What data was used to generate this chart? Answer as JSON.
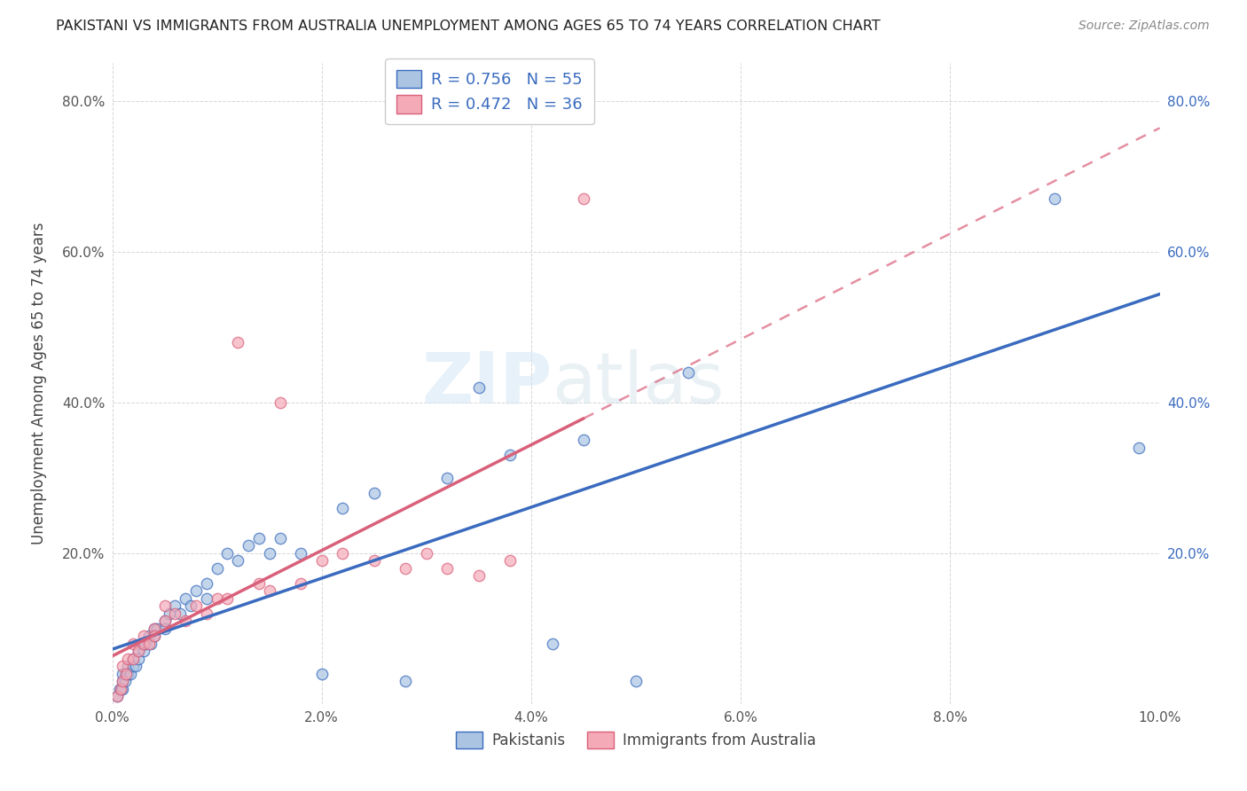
{
  "title": "PAKISTANI VS IMMIGRANTS FROM AUSTRALIA UNEMPLOYMENT AMONG AGES 65 TO 74 YEARS CORRELATION CHART",
  "source": "Source: ZipAtlas.com",
  "ylabel": "Unemployment Among Ages 65 to 74 years",
  "xlim": [
    0.0,
    0.1
  ],
  "ylim": [
    0.0,
    0.85
  ],
  "xticks": [
    0.0,
    0.02,
    0.04,
    0.06,
    0.08,
    0.1
  ],
  "yticks": [
    0.0,
    0.2,
    0.4,
    0.6,
    0.8
  ],
  "xticklabels": [
    "0.0%",
    "2.0%",
    "4.0%",
    "6.0%",
    "8.0%",
    "10.0%"
  ],
  "yticklabels_left": [
    "",
    "20.0%",
    "40.0%",
    "60.0%",
    "80.0%"
  ],
  "yticklabels_right": [
    "",
    "20.0%",
    "40.0%",
    "60.0%",
    "80.0%"
  ],
  "color_pakistani": "#aac4e2",
  "color_australia": "#f5aab8",
  "color_line_pakistani": "#3a6bbf",
  "color_line_australia": "#d9607a",
  "legend_r1": "R = 0.756",
  "legend_n1": "N = 55",
  "legend_r2": "R = 0.472",
  "legend_n2": "N = 36",
  "pakistani_x": [
    0.0005,
    0.0007,
    0.0009,
    0.001,
    0.001,
    0.001,
    0.0012,
    0.0013,
    0.0015,
    0.0015,
    0.0017,
    0.002,
    0.002,
    0.0022,
    0.0025,
    0.0025,
    0.003,
    0.003,
    0.0032,
    0.0035,
    0.0037,
    0.004,
    0.004,
    0.0043,
    0.005,
    0.005,
    0.0055,
    0.006,
    0.0065,
    0.007,
    0.0075,
    0.008,
    0.009,
    0.009,
    0.01,
    0.011,
    0.012,
    0.013,
    0.014,
    0.015,
    0.016,
    0.018,
    0.02,
    0.022,
    0.025,
    0.028,
    0.032,
    0.035,
    0.038,
    0.042,
    0.045,
    0.05,
    0.055,
    0.09,
    0.098
  ],
  "pakistani_y": [
    0.01,
    0.02,
    0.02,
    0.03,
    0.02,
    0.04,
    0.03,
    0.04,
    0.04,
    0.05,
    0.04,
    0.05,
    0.06,
    0.05,
    0.07,
    0.06,
    0.07,
    0.08,
    0.08,
    0.09,
    0.08,
    0.1,
    0.09,
    0.1,
    0.11,
    0.1,
    0.12,
    0.13,
    0.12,
    0.14,
    0.13,
    0.15,
    0.16,
    0.14,
    0.18,
    0.2,
    0.19,
    0.21,
    0.22,
    0.2,
    0.22,
    0.2,
    0.04,
    0.26,
    0.28,
    0.03,
    0.3,
    0.42,
    0.33,
    0.08,
    0.35,
    0.03,
    0.44,
    0.67,
    0.34
  ],
  "australia_x": [
    0.0005,
    0.0008,
    0.001,
    0.001,
    0.0013,
    0.0015,
    0.002,
    0.002,
    0.0025,
    0.003,
    0.003,
    0.0035,
    0.004,
    0.004,
    0.005,
    0.005,
    0.006,
    0.007,
    0.008,
    0.009,
    0.01,
    0.011,
    0.012,
    0.014,
    0.015,
    0.016,
    0.018,
    0.02,
    0.022,
    0.025,
    0.028,
    0.03,
    0.032,
    0.035,
    0.038,
    0.045
  ],
  "australia_y": [
    0.01,
    0.02,
    0.03,
    0.05,
    0.04,
    0.06,
    0.06,
    0.08,
    0.07,
    0.08,
    0.09,
    0.08,
    0.1,
    0.09,
    0.11,
    0.13,
    0.12,
    0.11,
    0.13,
    0.12,
    0.14,
    0.14,
    0.48,
    0.16,
    0.15,
    0.4,
    0.16,
    0.19,
    0.2,
    0.19,
    0.18,
    0.2,
    0.18,
    0.17,
    0.19,
    0.67
  ],
  "watermark_zip": "ZIP",
  "watermark_atlas": "atlas",
  "background_color": "#ffffff",
  "grid_color": "#cccccc"
}
